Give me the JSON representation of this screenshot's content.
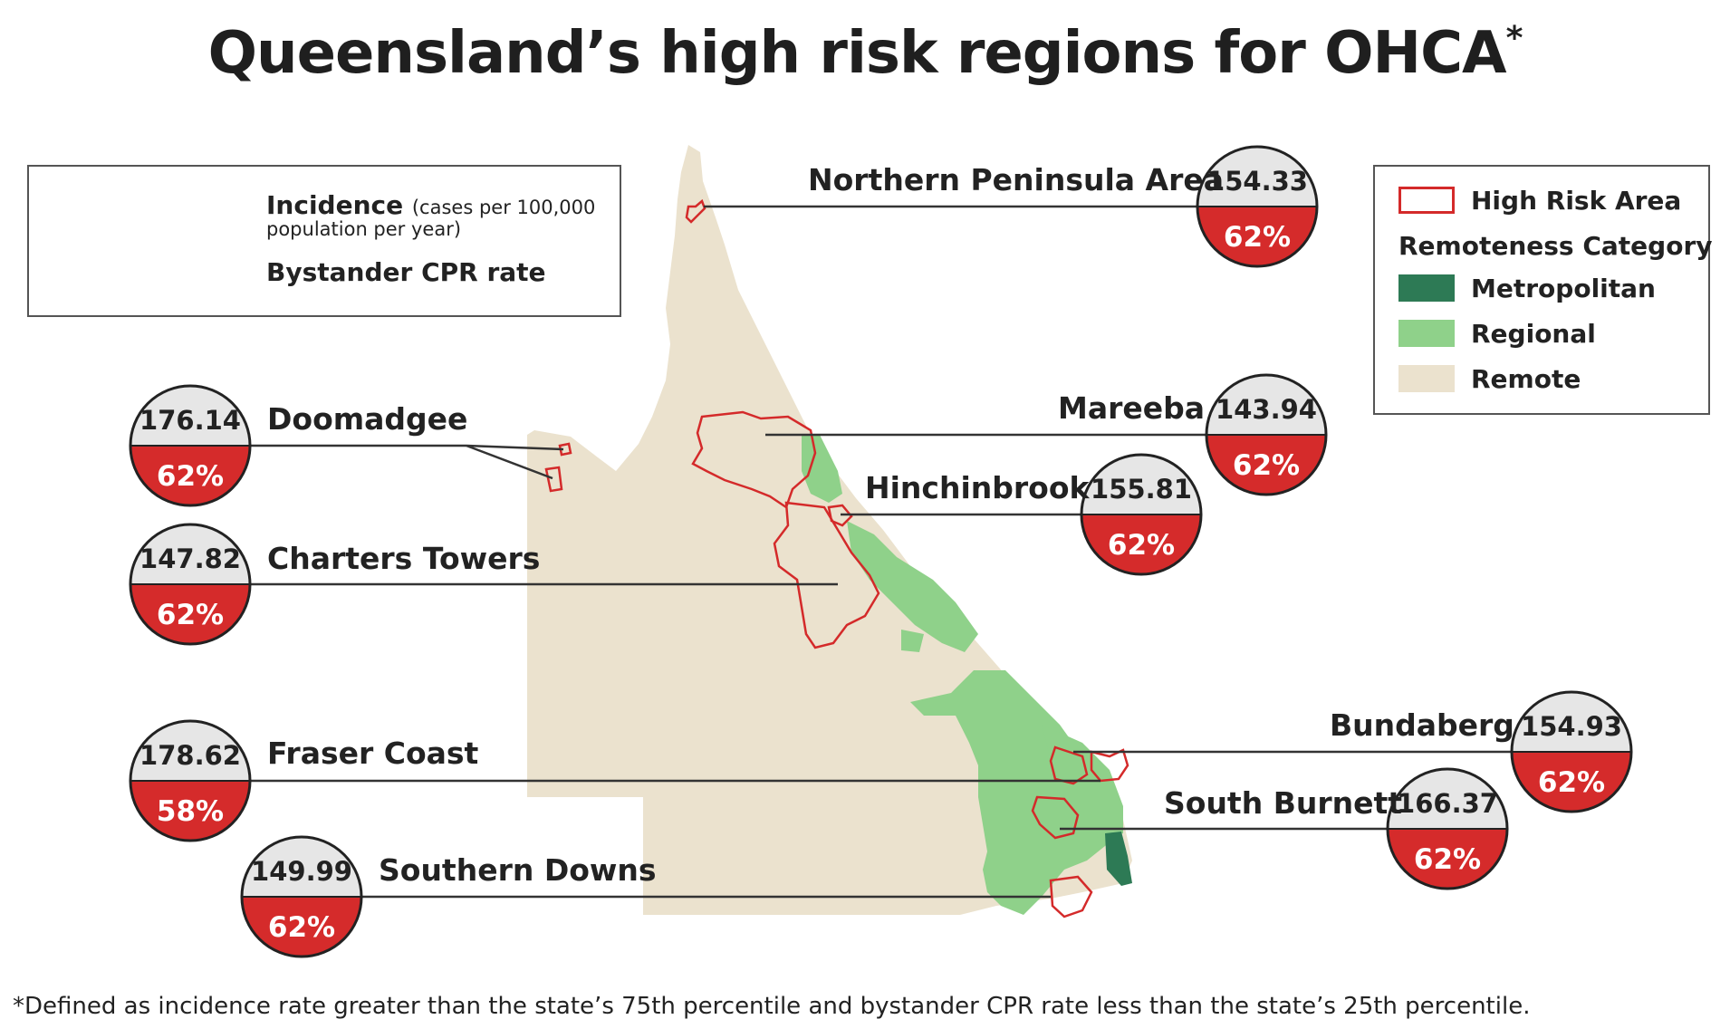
{
  "title": "Queensland’s high risk regions for OHCA",
  "title_mark": "*",
  "footnote": "*Defined as incidence rate greater than the state’s 75th percentile and bystander CPR rate less than the state’s 25th percentile.",
  "key_box": {
    "incidence_label": "Incidence",
    "incidence_note_1": "(cases per 100,000",
    "incidence_note_2": "population per year)",
    "cpr_label": "Bystander CPR rate"
  },
  "legend": {
    "high_risk": "High Risk Area",
    "heading": "Remoteness Category",
    "metropolitan": "Metropolitan",
    "regional": "Regional",
    "remote": "Remote"
  },
  "colors": {
    "remote": "#ebe2ce",
    "regional": "#8fd18a",
    "metropolitan": "#2d7a55",
    "high_risk_outline": "#d42a2a",
    "badge_top": "#e6e6e6",
    "badge_bottom": "#d52b2b"
  },
  "regions": [
    {
      "name": "Northern Peninsula Area",
      "incidence": "154.33",
      "cpr": "62%"
    },
    {
      "name": "Doomadgee",
      "incidence": "176.14",
      "cpr": "62%"
    },
    {
      "name": "Mareeba",
      "incidence": "143.94",
      "cpr": "62%"
    },
    {
      "name": "Hinchinbrook",
      "incidence": "155.81",
      "cpr": "62%"
    },
    {
      "name": "Charters Towers",
      "incidence": "147.82",
      "cpr": "62%"
    },
    {
      "name": "Bundaberg",
      "incidence": "154.93",
      "cpr": "62%"
    },
    {
      "name": "Fraser Coast",
      "incidence": "178.62",
      "cpr": "58%"
    },
    {
      "name": "South Burnett",
      "incidence": "166.37",
      "cpr": "62%"
    },
    {
      "name": "Southern Downs",
      "incidence": "149.99",
      "cpr": "62%"
    }
  ]
}
